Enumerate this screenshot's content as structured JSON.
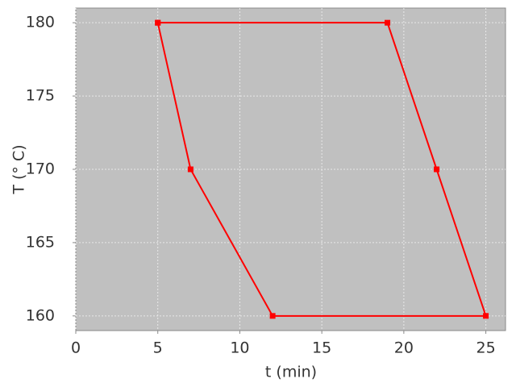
{
  "chart_data": {
    "type": "line",
    "x_label": "t (min)",
    "y_label": "T (° C)",
    "x": [
      5,
      7,
      12,
      25,
      22,
      19,
      5
    ],
    "series": [
      {
        "name": "T",
        "color": "#ff0000",
        "values": [
          180,
          170,
          160,
          160,
          170,
          180,
          180
        ]
      }
    ],
    "xlim": [
      0,
      26.2
    ],
    "ylim": [
      159,
      181
    ],
    "xticks": [
      0,
      5,
      10,
      15,
      20,
      25
    ],
    "yticks": [
      160,
      165,
      170,
      175,
      180
    ],
    "grid": true,
    "background": "#c0c0c0"
  }
}
